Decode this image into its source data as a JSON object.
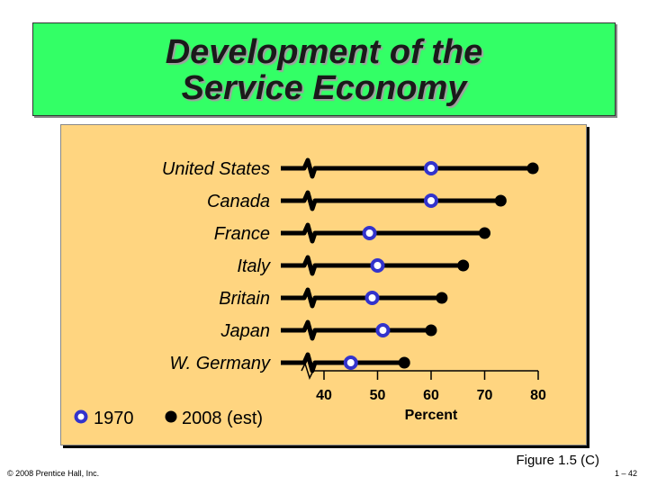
{
  "slide": {
    "title_line1": "Development of the",
    "title_line2": "Service Economy",
    "figure_label": "Figure 1.5 (C)",
    "copyright": "© 2008 Prentice Hall, Inc.",
    "page_number": "1 – 42"
  },
  "colors": {
    "title_bg": "#33ff66",
    "panel_bg": "#ffd580",
    "series_1970": "#3333cc",
    "series_2008": "#000000"
  },
  "chart_data": {
    "type": "dot-plot",
    "categories": [
      "United States",
      "Canada",
      "France",
      "Italy",
      "Britain",
      "Japan",
      "W. Germany"
    ],
    "series": [
      {
        "name": "1970",
        "values": [
          60,
          60,
          48.5,
          50,
          49,
          51,
          45
        ]
      },
      {
        "name": "2008 (est)",
        "values": [
          79,
          73,
          70,
          66,
          62,
          60,
          55
        ]
      }
    ],
    "xlabel": "Percent",
    "xticks": [
      40,
      50,
      60,
      70,
      80
    ],
    "xlim": [
      40,
      80
    ],
    "axis_break": true,
    "legend": "bottom-left"
  }
}
